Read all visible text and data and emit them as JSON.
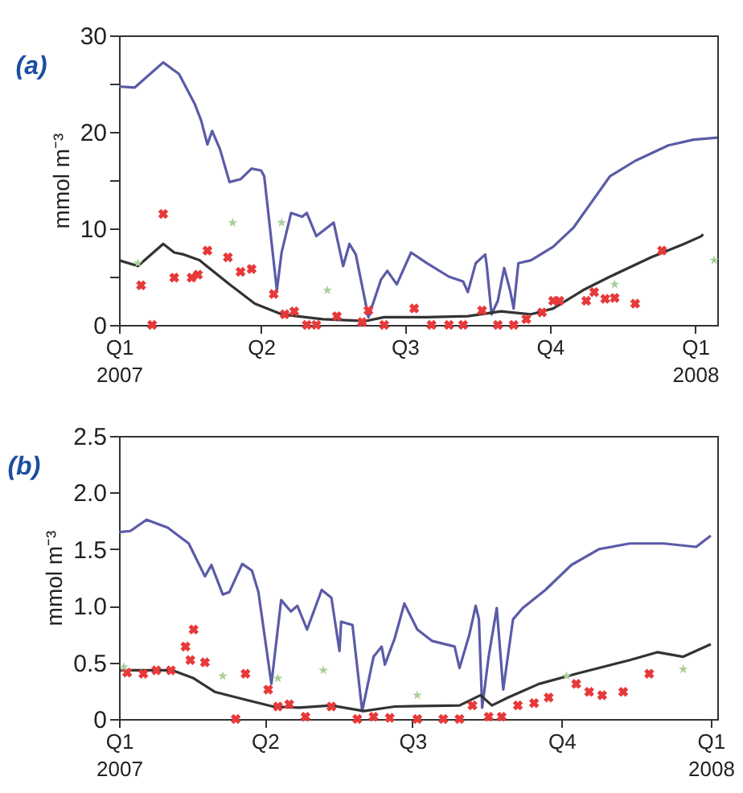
{
  "chart_data": [
    {
      "type": "line",
      "title": "(a)",
      "ylabel": "mmol m⁻³",
      "xlim": [
        "2007-01-01",
        "2008-01-15"
      ],
      "xticks": [
        {
          "value": "2007-01-01",
          "label": "Q1\n2007"
        },
        {
          "value": "2007-04-01",
          "label": "Q2"
        },
        {
          "value": "2007-07-01",
          "label": "Q3"
        },
        {
          "value": "2007-10-01",
          "label": "Q4"
        },
        {
          "value": "2008-01-01",
          "label": "Q1\n2008"
        }
      ],
      "ylim": [
        0,
        30
      ],
      "yticks": [
        0,
        {
          "value": 5,
          "label": null
        },
        10,
        {
          "value": 15,
          "label": null
        },
        20,
        {
          "value": 25,
          "label": null
        },
        30
      ],
      "series": [
        {
          "type": "line",
          "color": "#5b5ba8",
          "x": [
            "2007-01-01",
            "2007-01-11",
            "2007-01-29",
            "2007-02-08",
            "2007-02-18",
            "2007-02-22",
            "2007-02-26",
            "2007-03-01",
            "2007-03-06",
            "2007-03-12",
            "2007-03-19",
            "2007-03-26",
            "2007-04-01",
            "2007-04-03",
            "2007-04-11",
            "2007-04-14",
            "2007-04-20",
            "2007-04-27",
            "2007-04-30",
            "2007-05-06",
            "2007-05-17",
            "2007-05-23",
            "2007-05-27",
            "2007-05-31",
            "2007-06-08",
            "2007-06-16",
            "2007-06-20",
            "2007-06-26",
            "2007-07-05",
            "2007-07-15",
            "2007-07-29",
            "2007-08-07",
            "2007-08-10",
            "2007-08-15",
            "2007-08-21",
            "2007-08-22",
            "2007-08-25",
            "2007-08-29",
            "2007-09-02",
            "2007-09-06",
            "2007-09-08",
            "2007-09-11",
            "2007-09-19",
            "2007-10-03",
            "2007-10-16",
            "2007-11-08",
            "2007-11-24",
            "2007-12-15",
            "2007-12-31",
            "2008-01-15"
          ],
          "values": [
            24.7,
            24.6,
            27.2,
            26.0,
            22.9,
            21.2,
            18.7,
            20.1,
            18.2,
            14.8,
            15.1,
            16.2,
            16.0,
            15.4,
            3.6,
            7.5,
            11.6,
            11.2,
            11.6,
            9.2,
            10.6,
            6.1,
            8.4,
            7.3,
            0.8,
            4.7,
            5.6,
            4.2,
            7.5,
            6.4,
            5.0,
            4.5,
            3.4,
            6.4,
            7.3,
            6.1,
            1.1,
            2.5,
            5.9,
            3.4,
            1.7,
            6.4,
            6.7,
            8.1,
            10.1,
            15.4,
            17.0,
            18.6,
            19.2,
            19.4
          ]
        },
        {
          "type": "line",
          "color": "#333333",
          "x": [
            "2007-01-01",
            "2007-01-13",
            "2007-01-29",
            "2007-02-05",
            "2007-02-11",
            "2007-02-21",
            "2007-03-12",
            "2007-03-28",
            "2007-04-14",
            "2007-05-10",
            "2007-06-06",
            "2007-06-18",
            "2007-07-15",
            "2007-08-10",
            "2007-08-31",
            "2007-09-19",
            "2007-10-03",
            "2007-10-22",
            "2007-11-08",
            "2007-12-04",
            "2007-12-25",
            "2008-01-05",
            "2008-01-06"
          ],
          "values": [
            6.7,
            6.1,
            8.4,
            7.5,
            7.3,
            6.7,
            4.2,
            2.2,
            1.1,
            0.6,
            0.4,
            0.8,
            0.8,
            0.9,
            1.4,
            1.1,
            1.7,
            3.6,
            5.0,
            7.0,
            8.4,
            9.2,
            9.4
          ]
        },
        {
          "type": "scatter",
          "marker": "cross",
          "color": "#e8393a",
          "x": [
            "2007-01-15",
            "2007-01-22",
            "2007-01-29",
            "2007-02-05",
            "2007-02-16",
            "2007-02-20",
            "2007-02-26",
            "2007-03-11",
            "2007-03-19",
            "2007-03-26",
            "2007-04-09",
            "2007-04-16",
            "2007-04-22",
            "2007-04-30",
            "2007-05-06",
            "2007-05-19",
            "2007-06-04",
            "2007-06-08",
            "2007-06-18",
            "2007-07-07",
            "2007-07-18",
            "2007-07-29",
            "2007-08-07",
            "2007-08-19",
            "2007-08-29",
            "2007-09-08",
            "2007-09-16",
            "2007-09-26",
            "2007-10-03",
            "2007-10-07",
            "2007-10-24",
            "2007-10-29",
            "2007-11-05",
            "2007-11-11",
            "2007-11-24",
            "2007-12-11"
          ],
          "values": [
            4.1,
            0,
            11.5,
            4.9,
            4.9,
            5.2,
            7.7,
            7.0,
            5.5,
            5.8,
            3.2,
            1.1,
            1.4,
            0,
            0,
            0.9,
            0.3,
            1.5,
            0,
            1.7,
            0,
            0,
            0,
            1.5,
            0,
            0,
            0.6,
            1.3,
            2.5,
            2.5,
            2.5,
            3.4,
            2.7,
            2.8,
            2.2,
            7.7
          ]
        },
        {
          "type": "scatter",
          "marker": "star",
          "color": "#a8cf98",
          "x": [
            "2007-01-13",
            "2007-03-14",
            "2007-04-14",
            "2007-05-13",
            "2007-11-11",
            "2008-01-13"
          ],
          "values": [
            6.4,
            10.6,
            10.6,
            3.6,
            4.2,
            6.7
          ]
        }
      ]
    },
    {
      "type": "line",
      "title": "(b)",
      "ylabel": "mmol m⁻³",
      "xlim": [
        "2007-01-01",
        "2008-01-05"
      ],
      "xticks": [
        {
          "value": "2007-01-01",
          "label": "Q1\n2007"
        },
        {
          "value": "2007-04-01",
          "label": "Q2"
        },
        {
          "value": "2007-07-01",
          "label": "Q3"
        },
        {
          "value": "2007-10-01",
          "label": "Q4"
        },
        {
          "value": "2008-01-01",
          "label": "Q1\n2008"
        }
      ],
      "ylim": [
        0,
        2.5
      ],
      "yticks": [
        0,
        0.5,
        {
          "value": 1,
          "label": "1.0"
        },
        1.5,
        {
          "value": 2,
          "label": "2.0"
        },
        2.5
      ],
      "series": [
        {
          "type": "line",
          "color": "#5b5ba8",
          "x": [
            "2007-01-01",
            "2007-01-08",
            "2007-01-18",
            "2007-01-31",
            "2007-02-13",
            "2007-02-23",
            "2007-02-27",
            "2007-03-06",
            "2007-03-10",
            "2007-03-18",
            "2007-03-24",
            "2007-03-28",
            "2007-04-05",
            "2007-04-11",
            "2007-04-17",
            "2007-04-21",
            "2007-04-27",
            "2007-05-06",
            "2007-05-12",
            "2007-05-17",
            "2007-05-18",
            "2007-05-25",
            "2007-05-31",
            "2007-06-07",
            "2007-06-12",
            "2007-06-14",
            "2007-06-20",
            "2007-06-26",
            "2007-07-04",
            "2007-07-13",
            "2007-07-27",
            "2007-07-30",
            "2007-08-05",
            "2007-08-09",
            "2007-08-11",
            "2007-08-13",
            "2007-08-17",
            "2007-08-22",
            "2007-08-26",
            "2007-09-01",
            "2007-09-07",
            "2007-09-21",
            "2007-10-07",
            "2007-10-24",
            "2007-11-12",
            "2007-12-03",
            "2007-12-23",
            "2008-01-01"
          ],
          "values": [
            1.65,
            1.66,
            1.76,
            1.69,
            1.55,
            1.26,
            1.36,
            1.1,
            1.12,
            1.37,
            1.31,
            1.12,
            0.31,
            1.05,
            0.95,
            1.0,
            0.79,
            1.14,
            1.07,
            0.6,
            0.86,
            0.83,
            0.07,
            0.55,
            0.64,
            0.48,
            0.71,
            1.02,
            0.79,
            0.69,
            0.64,
            0.45,
            0.74,
            1.0,
            0.88,
            0.1,
            0.55,
            0.98,
            0.26,
            0.88,
            0.98,
            1.14,
            1.36,
            1.5,
            1.55,
            1.55,
            1.52,
            1.62
          ]
        },
        {
          "type": "line",
          "color": "#333333",
          "x": [
            "2007-01-01",
            "2007-02-03",
            "2007-02-16",
            "2007-03-01",
            "2007-03-20",
            "2007-04-06",
            "2007-04-22",
            "2007-05-12",
            "2007-06-01",
            "2007-06-20",
            "2007-07-30",
            "2007-08-12",
            "2007-08-19",
            "2007-08-29",
            "2007-09-17",
            "2007-10-10",
            "2007-11-12",
            "2007-11-29",
            "2007-12-15",
            "2008-01-01"
          ],
          "values": [
            0.43,
            0.43,
            0.36,
            0.24,
            0.17,
            0.11,
            0.1,
            0.12,
            0.07,
            0.11,
            0.12,
            0.21,
            0.12,
            0.19,
            0.31,
            0.4,
            0.52,
            0.59,
            0.55,
            0.66
          ]
        },
        {
          "type": "scatter",
          "marker": "cross",
          "color": "#e8393a",
          "x": [
            "2007-01-06",
            "2007-01-16",
            "2007-01-24",
            "2007-02-02",
            "2007-02-11",
            "2007-02-16",
            "2007-02-14",
            "2007-02-23",
            "2007-03-14",
            "2007-03-20",
            "2007-04-03",
            "2007-04-09",
            "2007-04-16",
            "2007-04-26",
            "2007-05-12",
            "2007-05-28",
            "2007-06-07",
            "2007-06-17",
            "2007-07-04",
            "2007-07-20",
            "2007-07-30",
            "2007-08-07",
            "2007-08-17",
            "2007-08-25",
            "2007-09-04",
            "2007-09-14",
            "2007-09-23",
            "2007-10-10",
            "2007-10-18",
            "2007-10-26",
            "2007-11-08",
            "2007-11-24"
          ],
          "values": [
            0.41,
            0.4,
            0.43,
            0.43,
            0.64,
            0.79,
            0.52,
            0.5,
            0,
            0.4,
            0.26,
            0.11,
            0.13,
            0.02,
            0.11,
            0,
            0.02,
            0.01,
            0,
            0,
            0,
            0.12,
            0.02,
            0.02,
            0.12,
            0.14,
            0.19,
            0.31,
            0.24,
            0.21,
            0.24,
            0.4
          ]
        },
        {
          "type": "scatter",
          "marker": "star",
          "color": "#a8cf98",
          "x": [
            "2007-01-04",
            "2007-03-06",
            "2007-04-09",
            "2007-05-07",
            "2007-07-04",
            "2007-10-04",
            "2007-12-15"
          ],
          "values": [
            0.46,
            0.38,
            0.36,
            0.43,
            0.21,
            0.38,
            0.44
          ]
        }
      ]
    }
  ]
}
